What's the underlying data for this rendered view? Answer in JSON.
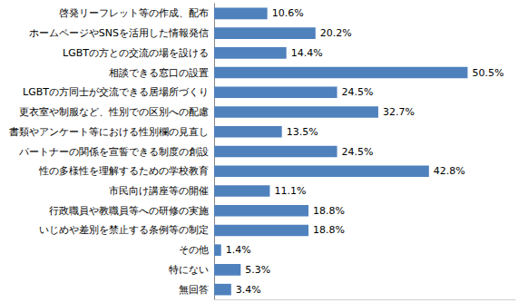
{
  "chart_data": {
    "type": "bar",
    "orientation": "horizontal",
    "categories": [
      "啓発リーフレット等の作成、配布",
      "ホームページやSNSを活用した情報発信",
      "LGBTの方との交流の場を設ける",
      "相談できる窓口の設置",
      "LGBTの方同士が交流できる居場所づくり",
      "更衣室や制服など、性別での区別への配慮",
      "書類やアンケート等における性別欄の見直し",
      "パートナーの関係を宣誓できる制度の創設",
      "性の多様性を理解するための学校教育",
      "市民向け講座等の開催",
      "行政職員や教職員等への研修の実施",
      "いじめや差別を禁止する条例等の制定",
      "その他",
      "特にない",
      "無回答"
    ],
    "values": [
      10.6,
      20.2,
      14.4,
      50.5,
      24.5,
      32.7,
      13.5,
      24.5,
      42.8,
      11.1,
      18.8,
      18.8,
      1.4,
      5.3,
      3.4
    ],
    "value_labels": [
      "10.6%",
      "20.2%",
      "14.4%",
      "50.5%",
      "24.5%",
      "32.7%",
      "13.5%",
      "24.5%",
      "42.8%",
      "11.1%",
      "18.8%",
      "18.8%",
      "1.4%",
      "5.3%",
      "3.4%"
    ],
    "color": "#4f81bd",
    "xlim": [
      0,
      60
    ],
    "data_labels": true,
    "tick_labels": "y",
    "grid": false
  }
}
